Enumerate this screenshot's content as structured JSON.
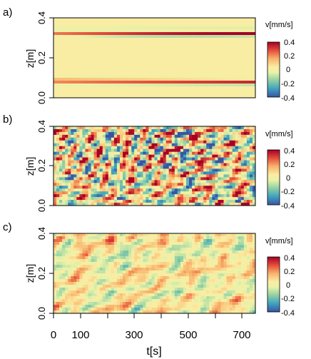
{
  "chart_data": [
    {
      "type": "heatmap",
      "panel_label": "a)",
      "ylabel": "z[m]",
      "yticks": [
        "0.0",
        "0.2",
        "0.4"
      ],
      "ylim": [
        0,
        0.4
      ],
      "colorbar": {
        "title": "v[mm/s]",
        "ticks": [
          "0.4",
          "0.2",
          "0",
          "-0.2",
          "-0.4"
        ],
        "range": [
          -0.4,
          0.4
        ]
      },
      "pattern": "layered",
      "bands": [
        {
          "z": 0.315,
          "v": 0.38,
          "width": 0.008
        },
        {
          "z": 0.305,
          "v": -0.2,
          "width": 0.006
        },
        {
          "z": 0.345,
          "v": -0.08,
          "width": 0.01
        },
        {
          "z": 0.085,
          "v": 0.38,
          "width": 0.008
        },
        {
          "z": 0.07,
          "v": -0.15,
          "width": 0.006
        },
        {
          "z": 0.1,
          "v": -0.06,
          "width": 0.01
        }
      ]
    },
    {
      "type": "heatmap",
      "panel_label": "b)",
      "ylabel": "z[m]",
      "yticks": [
        "0.0",
        "0.2",
        "0.4"
      ],
      "ylim": [
        0,
        0.4
      ],
      "colorbar": {
        "title": "v[mm/s]",
        "ticks": [
          "0.4",
          "0.2",
          "0",
          "-0.2",
          "-0.4"
        ],
        "range": [
          -0.4,
          0.4
        ]
      },
      "pattern": "turbulent-strong"
    },
    {
      "type": "heatmap",
      "panel_label": "c)",
      "ylabel": "z[m]",
      "yticks": [
        "0.0",
        "0.2",
        "0.4"
      ],
      "ylim": [
        0,
        0.4
      ],
      "xlabel": "t[s]",
      "xticks": [
        "0",
        "100",
        "300",
        "500",
        "700"
      ],
      "xlim": [
        0,
        750
      ],
      "colorbar": {
        "title": "v[mm/s]",
        "ticks": [
          "0.4",
          "0.2",
          "0",
          "-0.2",
          "-0.4"
        ],
        "range": [
          -0.4,
          0.4
        ]
      },
      "pattern": "turbulent-weak"
    }
  ]
}
